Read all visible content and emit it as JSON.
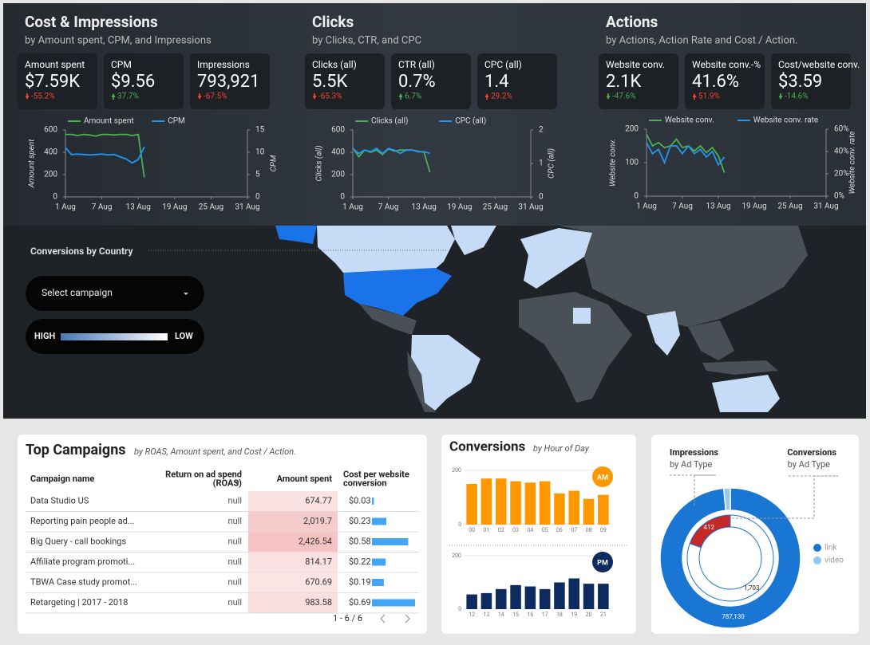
{
  "header_panels": [
    {
      "title": "Cost & Impressions",
      "subtitle": "by Amount spent, CPM, and Impressions",
      "kpis": [
        {
          "label": "Amount spent",
          "value": "$7.59K",
          "change": "-55.2%",
          "direction": "down",
          "color": "#f44336"
        },
        {
          "label": "CPM",
          "value": "$9.56",
          "change": "37.7%",
          "direction": "up",
          "color": "#4caf50"
        },
        {
          "label": "Impressions",
          "value": "793,921",
          "change": "-67.5%",
          "direction": "down",
          "color": "#f44336"
        }
      ],
      "chart": {
        "type": "line",
        "y_label": "Amount spent",
        "y2_label": "CPM",
        "x": [
          1,
          2,
          3,
          4,
          5,
          6,
          7,
          8,
          9,
          10,
          11,
          12,
          13,
          14
        ],
        "xlim": [
          1,
          31
        ],
        "xticks": [
          {
            "value": 1,
            "label": "1 Aug"
          },
          {
            "value": 7,
            "label": "7 Aug"
          },
          {
            "value": 13,
            "label": "13 Aug"
          },
          {
            "value": 19,
            "label": "19 Aug"
          },
          {
            "value": 25,
            "label": "25 Aug"
          },
          {
            "value": 31,
            "label": "31 Aug"
          }
        ],
        "ylim": [
          0,
          600
        ],
        "yticks": [
          0,
          200,
          400,
          600
        ],
        "y2lim": [
          0,
          15
        ],
        "y2ticks": [
          0,
          5,
          10,
          15
        ],
        "series": [
          {
            "name": "Amount spent",
            "color": "#4caf50",
            "values": [
              560,
              560,
              550,
              560,
              555,
              545,
              560,
              560,
              555,
              560,
              560,
              550,
              560,
              175
            ]
          },
          {
            "name": "CPM",
            "color": "#2196f3",
            "axis": "y2",
            "values": [
              11,
              9.5,
              9.6,
              9.5,
              9.4,
              9.5,
              9.6,
              9.4,
              9.5,
              9,
              8.5,
              7.6,
              8.4,
              11.2
            ]
          }
        ]
      }
    },
    {
      "title": "Clicks",
      "subtitle": "by Clicks, CTR, and CPC",
      "kpis": [
        {
          "label": "Clicks (all)",
          "value": "5.5K",
          "change": "-65.3%",
          "direction": "down",
          "color": "#f44336"
        },
        {
          "label": "CTR (all)",
          "value": "0.7%",
          "change": "6.7%",
          "direction": "up",
          "color": "#4caf50"
        },
        {
          "label": "CPC (all)",
          "value": "1.4",
          "change": "29.2%",
          "direction": "up",
          "color": "#f44336"
        }
      ],
      "chart": {
        "type": "line",
        "y_label": "Clicks (all)",
        "y2_label": "CPC (all)",
        "x": [
          1,
          2,
          3,
          4,
          5,
          6,
          7,
          8,
          9,
          10,
          11,
          12,
          13,
          14
        ],
        "xlim": [
          1,
          31
        ],
        "xticks": [
          {
            "value": 1,
            "label": "1 Aug"
          },
          {
            "value": 7,
            "label": "7 Aug"
          },
          {
            "value": 13,
            "label": "13 Aug"
          },
          {
            "value": 19,
            "label": "19 Aug"
          },
          {
            "value": 25,
            "label": "25 Aug"
          },
          {
            "value": 31,
            "label": "31 Aug"
          }
        ],
        "ylim": [
          0,
          600
        ],
        "yticks": [
          0,
          200,
          400,
          600
        ],
        "y2lim": [
          0,
          2
        ],
        "y2ticks": [
          0,
          1,
          2
        ],
        "series": [
          {
            "name": "Clicks (all)",
            "color": "#4caf50",
            "values": [
              440,
              360,
              420,
              400,
              420,
              380,
              430,
              410,
              420,
              420,
              420,
              410,
              400,
              220
            ]
          },
          {
            "name": "CPC (all)",
            "color": "#2196f3",
            "axis": "y2",
            "values": [
              1.45,
              1.3,
              1.4,
              1.35,
              1.45,
              1.3,
              1.45,
              1.4,
              1.3,
              1.4,
              1.4,
              1.35,
              1.35,
              1.3
            ]
          }
        ]
      }
    },
    {
      "title": "Actions",
      "subtitle": "by Actions, Action Rate and Cost / Action.",
      "kpis": [
        {
          "label": "Website conv.",
          "value": "2.1K",
          "change": "-47.6%",
          "direction": "down",
          "color": "#4caf50"
        },
        {
          "label": "Website conv.-%",
          "value": "41.6%",
          "change": "51.9%",
          "direction": "up",
          "color": "#f44336"
        },
        {
          "label": "Cost/website conv.",
          "value": "$3.59",
          "change": "-14.6%",
          "direction": "down",
          "color": "#4caf50"
        }
      ],
      "chart": {
        "type": "line",
        "y_label": "Website conv.",
        "y2_label": "Website conv. rate",
        "x": [
          1,
          2,
          3,
          4,
          5,
          6,
          7,
          8,
          9,
          10,
          11,
          12,
          13,
          14
        ],
        "xlim": [
          1,
          31
        ],
        "xticks": [
          {
            "value": 1,
            "label": "1 Aug"
          },
          {
            "value": 7,
            "label": "7 Aug"
          },
          {
            "value": 13,
            "label": "13 Aug"
          },
          {
            "value": 19,
            "label": "19 Aug"
          },
          {
            "value": 25,
            "label": "25 Aug"
          },
          {
            "value": 31,
            "label": "31 Aug"
          }
        ],
        "ylim": [
          0,
          200
        ],
        "yticks": [
          0,
          100,
          200
        ],
        "y2lim": [
          0,
          60
        ],
        "y2ticks": [
          {
            "value": 0,
            "label": "0%"
          },
          {
            "value": 20,
            "label": "20%"
          },
          {
            "value": 40,
            "label": "40%"
          },
          {
            "value": 60,
            "label": "60%"
          }
        ],
        "series": [
          {
            "name": "Website conv.",
            "color": "#4caf50",
            "values": [
              185,
              150,
              160,
              145,
              150,
              170,
              145,
              150,
              135,
              150,
              130,
              145,
              120,
              70
            ]
          },
          {
            "name": "Website conv. rate",
            "color": "#2196f3",
            "axis": "y2",
            "values": [
              48,
              38,
              42,
              30,
              45,
              45,
              38,
              45,
              38,
              42,
              35,
              40,
              28,
              35
            ]
          }
        ]
      }
    }
  ],
  "map": {
    "title": "Conversions by Country",
    "dropdown": "Select campaign",
    "legend_high": "HIGH",
    "legend_low": "LOW"
  },
  "table": {
    "title": "Top Campaigns",
    "subtitle": "by ROAS, Amount spent, and Cost / Action.",
    "columns": [
      [
        "Campaign name"
      ],
      [
        "Return on ad spend",
        "(ROAS)"
      ],
      [
        "Amount spent"
      ],
      [
        "Cost per website",
        "conversion"
      ]
    ],
    "rows": [
      {
        "campaign": "Data Studio US",
        "roas": "null",
        "amount": 674.77,
        "amount_label": "674.77",
        "cost": 0.03,
        "cost_label": "$0.03"
      },
      {
        "campaign": "Reporting pain people ad...",
        "roas": "null",
        "amount": 2019.7,
        "amount_label": "2,019.7",
        "cost": 0.23,
        "cost_label": "$0.23"
      },
      {
        "campaign": "Big Query - call bookings",
        "roas": "null",
        "amount": 2426.54,
        "amount_label": "2,426.54",
        "cost": 0.58,
        "cost_label": "$0.58"
      },
      {
        "campaign": "Affiliate program promoti...",
        "roas": "null",
        "amount": 814.17,
        "amount_label": "814.17",
        "cost": 0.22,
        "cost_label": "$0.22"
      },
      {
        "campaign": "TBWA Case study promot...",
        "roas": "null",
        "amount": 670.69,
        "amount_label": "670.69",
        "cost": 0.19,
        "cost_label": "$0.19"
      },
      {
        "campaign": "Retargeting | 2017 - 2018",
        "roas": "null",
        "amount": 983.58,
        "amount_label": "983.58",
        "cost": 0.69,
        "cost_label": "$0.69"
      }
    ],
    "pagination": "1 - 6 / 6"
  },
  "hourly": {
    "title": "Conversions",
    "subtitle": "by Hour of Day",
    "charts": [
      {
        "type": "bar",
        "badge": "AM",
        "color": "#ff9800",
        "badge_color": "#ff9800",
        "categories": [
          "00",
          "01",
          "02",
          "03",
          "04",
          "05",
          "06",
          "07",
          "08",
          "09"
        ],
        "values": [
          150,
          170,
          170,
          160,
          155,
          160,
          115,
          125,
          95,
          110
        ],
        "ylim": [
          0,
          200
        ],
        "yticks": [
          0,
          200
        ]
      },
      {
        "type": "bar",
        "badge": "PM",
        "color": "#0d2b5e",
        "badge_color": "#0d2b5e",
        "categories": [
          "12",
          "13",
          "14",
          "15",
          "16",
          "17",
          "18",
          "19",
          "20",
          "21"
        ],
        "values": [
          55,
          60,
          75,
          90,
          85,
          75,
          100,
          115,
          95,
          95
        ],
        "ylim": [
          0,
          200
        ],
        "yticks": [
          0,
          200
        ]
      }
    ]
  },
  "ad_type": {
    "rings": [
      {
        "name": "Impressions",
        "subtitle": "by Ad Type",
        "slices": [
          {
            "value": 787130,
            "value_label": "787,130",
            "color": "#1976d2"
          },
          {
            "value": 12000,
            "color": "#90caf9"
          }
        ]
      },
      {
        "name": "Conversions",
        "subtitle": "by Ad Type",
        "slices": [
          {
            "value": 1703,
            "value_label": "1,703",
            "color": "#ffffff"
          },
          {
            "value": 412,
            "value_label": "412",
            "color": "#c62828"
          }
        ]
      }
    ],
    "legend": [
      {
        "label": "link",
        "color": "#1976d2"
      },
      {
        "label": "video",
        "color": "#90caf9"
      }
    ]
  }
}
